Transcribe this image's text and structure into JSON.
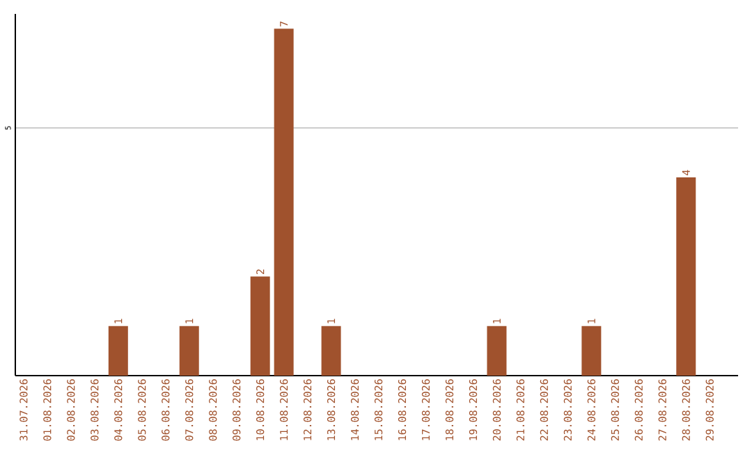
{
  "chart_data": {
    "type": "bar",
    "categories": [
      "31.07.2026",
      "01.08.2026",
      "02.08.2026",
      "03.08.2026",
      "04.08.2026",
      "05.08.2026",
      "06.08.2026",
      "07.08.2026",
      "08.08.2026",
      "09.08.2026",
      "10.08.2026",
      "11.08.2026",
      "12.08.2026",
      "13.08.2026",
      "14.08.2026",
      "15.08.2026",
      "16.08.2026",
      "17.08.2026",
      "18.08.2026",
      "19.08.2026",
      "20.08.2026",
      "21.08.2026",
      "22.08.2026",
      "23.08.2026",
      "24.08.2026",
      "25.08.2026",
      "26.08.2026",
      "27.08.2026",
      "28.08.2026",
      "29.08.2026"
    ],
    "values": [
      0,
      0,
      0,
      0,
      1,
      0,
      0,
      1,
      0,
      0,
      2,
      7,
      0,
      1,
      0,
      0,
      0,
      0,
      0,
      0,
      1,
      0,
      0,
      0,
      1,
      0,
      0,
      0,
      4,
      0
    ],
    "value_labels": [
      null,
      null,
      null,
      null,
      "1",
      null,
      null,
      "1",
      null,
      null,
      "2",
      "7",
      null,
      "1",
      null,
      null,
      null,
      null,
      null,
      null,
      "1",
      null,
      null,
      null,
      "1",
      null,
      null,
      null,
      "4",
      null
    ],
    "color": "#a0522d",
    "ylim": [
      0,
      7.3
    ],
    "yticks": [
      5
    ],
    "grid": "y"
  }
}
